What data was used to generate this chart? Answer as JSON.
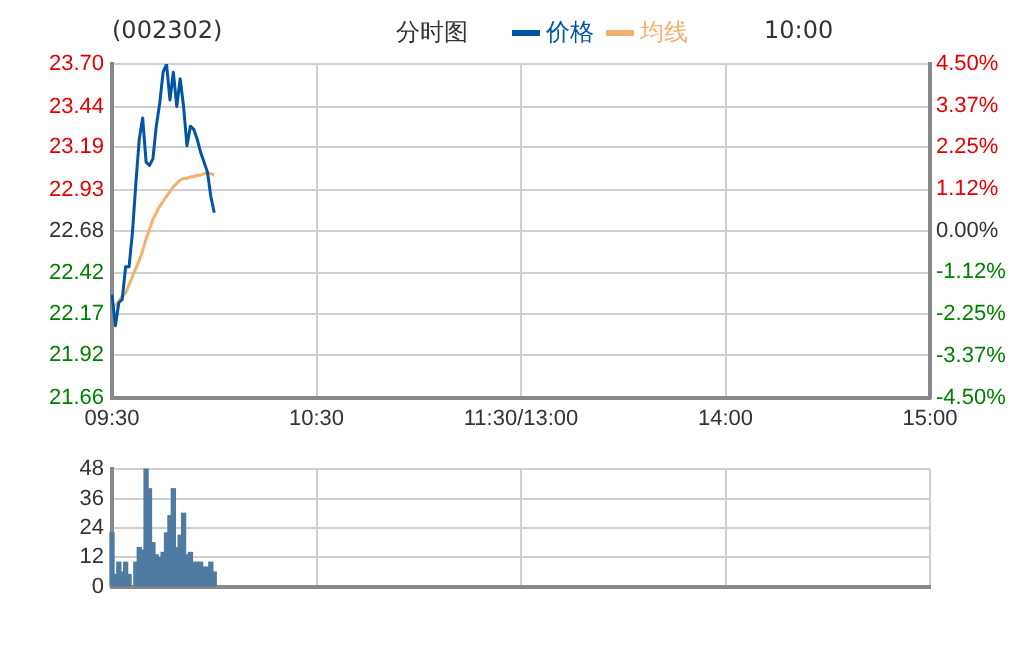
{
  "chart_data": [
    {
      "type": "line",
      "title": "分时图",
      "subtitle": "(002302)",
      "annotations": [
        "10:00"
      ],
      "legend": "top",
      "grid": true,
      "line_style": "solid",
      "marker": "none",
      "categories": [
        "09:30",
        null,
        null,
        null,
        null,
        null,
        null,
        null,
        null,
        null,
        null,
        null,
        null,
        null,
        null,
        null,
        null,
        null,
        null,
        null,
        null,
        null,
        null,
        null,
        null,
        null,
        null,
        null,
        null,
        null,
        null,
        null,
        null,
        null,
        null,
        null,
        null,
        null,
        null,
        null,
        null,
        null,
        null,
        null,
        null,
        null,
        null,
        null,
        null,
        null,
        null,
        null,
        null,
        null,
        null,
        null,
        null,
        null,
        null,
        null,
        "10:30",
        null,
        null,
        null,
        null,
        null,
        null,
        null,
        null,
        null,
        null,
        null,
        null,
        null,
        null,
        null,
        null,
        null,
        null,
        null,
        null,
        null,
        null,
        null,
        null,
        null,
        null,
        null,
        null,
        null,
        null,
        null,
        null,
        null,
        null,
        null,
        null,
        null,
        null,
        null,
        null,
        null,
        null,
        null,
        null,
        null,
        null,
        null,
        null,
        null,
        null,
        null,
        null,
        null,
        null,
        null,
        null,
        null,
        null,
        null,
        "11:30/13:00",
        null,
        null,
        null,
        null,
        null,
        null,
        null,
        null,
        null,
        null,
        null,
        null,
        null,
        null,
        null,
        null,
        null,
        null,
        null,
        null,
        null,
        null,
        null,
        null,
        null,
        null,
        null,
        null,
        null,
        null,
        null,
        null,
        null,
        null,
        null,
        null,
        null,
        null,
        null,
        null,
        null,
        null,
        null,
        null,
        null,
        null,
        null,
        null,
        null,
        null,
        null,
        null,
        null,
        null,
        null,
        null,
        null,
        null,
        null,
        "14:00",
        null,
        null,
        null,
        null,
        null,
        null,
        null,
        null,
        null,
        null,
        null,
        null,
        null,
        null,
        null,
        null,
        null,
        null,
        null,
        null,
        null,
        null,
        null,
        null,
        null,
        null,
        null,
        null,
        null,
        null,
        null,
        null,
        null,
        null,
        null,
        null,
        null,
        null,
        null,
        null,
        null,
        null,
        null,
        null,
        null,
        null,
        null,
        null,
        null,
        null,
        null,
        null,
        null,
        null,
        null,
        null,
        null,
        null,
        null,
        "15:00"
      ],
      "ylim": [
        21.66,
        23.7
      ],
      "yticks": [
        21.66,
        21.92,
        22.17,
        22.42,
        22.68,
        22.93,
        23.19,
        23.44,
        {
          "value": 23.7,
          "label": "23.70"
        }
      ],
      "y2lim": [
        -4.5,
        4.5
      ],
      "y2ticks": [
        {
          "value": -4.5,
          "label": "-4.50%"
        },
        {
          "value": -3.37,
          "label": "-3.37%"
        },
        {
          "value": -2.25,
          "label": "-2.25%"
        },
        {
          "value": -1.12,
          "label": "-1.12%"
        },
        {
          "value": 0,
          "label": "0.00%"
        },
        {
          "value": 1.12,
          "label": "1.12%"
        },
        {
          "value": 2.25,
          "label": "2.25%"
        },
        {
          "value": 3.37,
          "label": "3.37%"
        },
        {
          "value": 4.5,
          "label": "4.50%"
        }
      ],
      "series": [
        {
          "name": "价格",
          "color": "#0055a5",
          "values": [
            22.29,
            22.1,
            22.24,
            22.26,
            22.46,
            22.46,
            22.67,
            22.97,
            23.24,
            23.37,
            23.1,
            23.08,
            23.12,
            23.32,
            23.46,
            23.65,
            23.7,
            23.48,
            23.65,
            23.44,
            23.61,
            23.44,
            23.2,
            23.32,
            23.3,
            23.24,
            23.16,
            23.1,
            23.04,
            22.89,
            22.79,
            null,
            null,
            null,
            null,
            null,
            null,
            null,
            null,
            null,
            null,
            null,
            null,
            null,
            null,
            null,
            null,
            null,
            null,
            null,
            null,
            null,
            null,
            null,
            null,
            null,
            null,
            null,
            null,
            null,
            null,
            null,
            null,
            null,
            null,
            null,
            null,
            null,
            null,
            null,
            null,
            null,
            null,
            null,
            null,
            null,
            null,
            null,
            null,
            null,
            null,
            null,
            null,
            null,
            null,
            null,
            null,
            null,
            null,
            null,
            null,
            null,
            null,
            null,
            null,
            null,
            null,
            null,
            null,
            null,
            null,
            null,
            null,
            null,
            null,
            null,
            null,
            null,
            null,
            null,
            null,
            null,
            null,
            null,
            null,
            null,
            null,
            null,
            null,
            null,
            null,
            null,
            null,
            null,
            null,
            null,
            null,
            null,
            null,
            null,
            null,
            null,
            null,
            null,
            null,
            null,
            null,
            null,
            null,
            null,
            null,
            null,
            null,
            null,
            null,
            null,
            null,
            null,
            null,
            null,
            null,
            null,
            null,
            null,
            null,
            null,
            null,
            null,
            null,
            null,
            null,
            null,
            null,
            null,
            null,
            null,
            null,
            null,
            null,
            null,
            null,
            null,
            null,
            null,
            null,
            null,
            null,
            null,
            null,
            null,
            null,
            null,
            null,
            null,
            null,
            null,
            null,
            null,
            null,
            null,
            null,
            null,
            null,
            null,
            null,
            null,
            null,
            null,
            null,
            null,
            null,
            null,
            null,
            null,
            null,
            null,
            null,
            null,
            null,
            null,
            null,
            null,
            null,
            null,
            null,
            null,
            null,
            null,
            null,
            null,
            null,
            null,
            null,
            null,
            null,
            null,
            null,
            null,
            null,
            null,
            null,
            null,
            null,
            null,
            null,
            null,
            null,
            null,
            null,
            null,
            null
          ]
        },
        {
          "name": "均线",
          "color": "#f4b06c",
          "values": [
            null,
            22.22,
            22.25,
            22.28,
            22.3,
            22.35,
            22.4,
            22.45,
            22.5,
            22.56,
            22.63,
            22.69,
            22.75,
            22.79,
            22.83,
            22.86,
            22.89,
            22.92,
            22.95,
            22.97,
            22.99,
            23.0,
            23.0,
            23.01,
            23.01,
            23.02,
            23.02,
            23.03,
            23.03,
            23.03,
            23.02,
            null,
            null,
            null,
            null,
            null,
            null,
            null,
            null,
            null,
            null,
            null,
            null,
            null,
            null,
            null,
            null,
            null,
            null,
            null,
            null,
            null,
            null,
            null,
            null,
            null,
            null,
            null,
            null,
            null,
            null,
            null,
            null,
            null,
            null,
            null,
            null,
            null,
            null,
            null,
            null,
            null,
            null,
            null,
            null,
            null,
            null,
            null,
            null,
            null,
            null,
            null,
            null,
            null,
            null,
            null,
            null,
            null,
            null,
            null,
            null,
            null,
            null,
            null,
            null,
            null,
            null,
            null,
            null,
            null,
            null,
            null,
            null,
            null,
            null,
            null,
            null,
            null,
            null,
            null,
            null,
            null,
            null,
            null,
            null,
            null,
            null,
            null,
            null,
            null,
            null,
            null,
            null,
            null,
            null,
            null,
            null,
            null,
            null,
            null,
            null,
            null,
            null,
            null,
            null,
            null,
            null,
            null,
            null,
            null,
            null,
            null,
            null,
            null,
            null,
            null,
            null,
            null,
            null,
            null,
            null,
            null,
            null,
            null,
            null,
            null,
            null,
            null,
            null,
            null,
            null,
            null,
            null,
            null,
            null,
            null,
            null,
            null,
            null,
            null,
            null,
            null,
            null,
            null,
            null,
            null,
            null,
            null,
            null,
            null,
            null,
            null,
            null,
            null,
            null,
            null,
            null,
            null,
            null,
            null,
            null,
            null,
            null,
            null,
            null,
            null,
            null,
            null,
            null,
            null,
            null,
            null,
            null,
            null,
            null,
            null,
            null,
            null,
            null,
            null,
            null,
            null,
            null,
            null,
            null,
            null,
            null,
            null,
            null,
            null,
            null,
            null,
            null,
            null,
            null,
            null,
            null,
            null,
            null,
            null,
            null,
            null,
            null,
            null,
            null,
            null,
            null,
            null,
            null,
            null,
            null
          ]
        }
      ]
    },
    {
      "type": "bar",
      "grid": true,
      "tick_labels": "y",
      "color": "#4f7aa2",
      "categories": [
        null,
        null,
        null,
        null,
        null,
        null,
        null,
        null,
        null,
        null,
        null,
        null,
        null,
        null,
        null,
        null,
        null,
        null,
        null,
        null,
        null,
        null,
        null,
        null,
        null,
        null,
        null,
        null,
        null,
        null,
        null,
        null,
        null,
        null,
        null,
        null,
        null,
        null,
        null,
        null,
        null,
        null,
        null,
        null,
        null,
        null,
        null,
        null,
        null,
        null,
        null,
        null,
        null,
        null,
        null,
        null,
        null,
        null,
        null,
        null,
        null,
        null,
        null,
        null,
        null,
        null,
        null,
        null,
        null,
        null,
        null,
        null,
        null,
        null,
        null,
        null,
        null,
        null,
        null,
        null,
        null,
        null,
        null,
        null,
        null,
        null,
        null,
        null,
        null,
        null,
        null,
        null,
        null,
        null,
        null,
        null,
        null,
        null,
        null,
        null,
        null,
        null,
        null,
        null,
        null,
        null,
        null,
        null,
        null,
        null,
        null,
        null,
        null,
        null,
        null,
        null,
        null,
        null,
        null,
        null,
        null,
        null,
        null,
        null,
        null,
        null,
        null,
        null,
        null,
        null,
        null,
        null,
        null,
        null,
        null,
        null,
        null,
        null,
        null,
        null,
        null,
        null,
        null,
        null,
        null,
        null,
        null,
        null,
        null,
        null,
        null,
        null,
        null,
        null,
        null,
        null,
        null,
        null,
        null,
        null,
        null,
        null,
        null,
        null,
        null,
        null,
        null,
        null,
        null,
        null,
        null,
        null,
        null,
        null,
        null,
        null,
        null,
        null,
        null,
        null,
        null,
        null,
        null,
        null,
        null,
        null,
        null,
        null,
        null,
        null,
        null,
        null,
        null,
        null,
        null,
        null,
        null,
        null,
        null,
        null,
        null,
        null,
        null,
        null,
        null,
        null,
        null,
        null,
        null,
        null,
        null,
        null,
        null,
        null,
        null,
        null,
        null,
        null,
        null,
        null,
        null,
        null,
        null,
        null,
        null,
        null,
        null,
        null,
        null,
        null,
        null,
        null,
        null,
        null,
        null,
        null,
        null,
        null,
        null,
        null,
        null
      ],
      "ylim": [
        0,
        48
      ],
      "yticks": [
        0,
        12,
        24,
        36,
        48
      ],
      "values": [
        22,
        5,
        10,
        6,
        10,
        5,
        null,
        10,
        16,
        15,
        48,
        40,
        18,
        13,
        12,
        14,
        22,
        29,
        40,
        16,
        21,
        30,
        13,
        14,
        10,
        10,
        10,
        8,
        8,
        10,
        6,
        null,
        null,
        null,
        null,
        null,
        null,
        null,
        null,
        null,
        null,
        null,
        null,
        null,
        null,
        null,
        null,
        null,
        null,
        null,
        null,
        null,
        null,
        null,
        null,
        null,
        null,
        null,
        null,
        null,
        null,
        null,
        null,
        null,
        null,
        null,
        null,
        null,
        null,
        null,
        null,
        null,
        null,
        null,
        null,
        null,
        null,
        null,
        null,
        null,
        null,
        null,
        null,
        null,
        null,
        null,
        null,
        null,
        null,
        null,
        null,
        null,
        null,
        null,
        null,
        null,
        null,
        null,
        null,
        null,
        null,
        null,
        null,
        null,
        null,
        null,
        null,
        null,
        null,
        null,
        null,
        null,
        null,
        null,
        null,
        null,
        null,
        null,
        null,
        null,
        null,
        null,
        null,
        null,
        null,
        null,
        null,
        null,
        null,
        null,
        null,
        null,
        null,
        null,
        null,
        null,
        null,
        null,
        null,
        null,
        null,
        null,
        null,
        null,
        null,
        null,
        null,
        null,
        null,
        null,
        null,
        null,
        null,
        null,
        null,
        null,
        null,
        null,
        null,
        null,
        null,
        null,
        null,
        null,
        null,
        null,
        null,
        null,
        null,
        null,
        null,
        null,
        null,
        null,
        null,
        null,
        null,
        null,
        null,
        null,
        null,
        null,
        null,
        null,
        null,
        null,
        null,
        null,
        null,
        null,
        null,
        null,
        null,
        null,
        null,
        null,
        null,
        null,
        null,
        null,
        null,
        null,
        null,
        null,
        null,
        null,
        null,
        null,
        null,
        null,
        null,
        null,
        null,
        null,
        null,
        null,
        null,
        null,
        null,
        null,
        null,
        null,
        null,
        null,
        null,
        null,
        null,
        null,
        null,
        null,
        null,
        null,
        null,
        null,
        null,
        null,
        null,
        null,
        null,
        null,
        null
      ]
    }
  ]
}
